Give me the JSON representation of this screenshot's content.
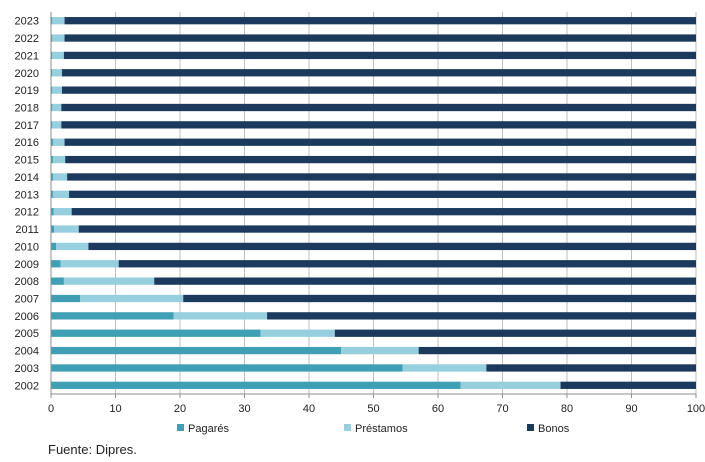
{
  "chart_data": {
    "type": "bar",
    "orientation": "horizontal",
    "stacked": true,
    "categories": [
      "2002",
      "2003",
      "2004",
      "2005",
      "2006",
      "2007",
      "2008",
      "2009",
      "2010",
      "2011",
      "2012",
      "2013",
      "2014",
      "2015",
      "2016",
      "2017",
      "2018",
      "2019",
      "2020",
      "2021",
      "2022",
      "2023"
    ],
    "series": [
      {
        "name": "Pagarés",
        "color": "#3f9fb5",
        "values": [
          63.5,
          54.5,
          45,
          32.5,
          19,
          4.5,
          2,
          1.5,
          0.8,
          0.5,
          0.4,
          0.3,
          0.3,
          0.3,
          0.3,
          0.2,
          0.2,
          0.2,
          0.2,
          0.2,
          0.2,
          0.2
        ]
      },
      {
        "name": "Préstamos",
        "color": "#96cfdd",
        "values": [
          15.5,
          13,
          12,
          11.5,
          14.5,
          16,
          14,
          9,
          5,
          3.8,
          2.8,
          2.5,
          2.2,
          1.9,
          1.8,
          1.4,
          1.4,
          1.5,
          1.5,
          1.8,
          1.9,
          1.9
        ]
      },
      {
        "name": "Bonos",
        "color": "#1c3a5e",
        "values": [
          21,
          32.5,
          43,
          56,
          66.5,
          79.5,
          84,
          89.5,
          94.2,
          95.7,
          96.8,
          97.2,
          97.5,
          97.8,
          97.9,
          98.4,
          98.4,
          98.3,
          98.3,
          98,
          97.9,
          97.9
        ]
      }
    ],
    "xlim": [
      0,
      100
    ],
    "xticks": [
      0,
      10,
      20,
      30,
      40,
      50,
      60,
      70,
      80,
      90,
      100
    ],
    "grid": true,
    "legend_position": "bottom",
    "title": "",
    "xlabel": "",
    "ylabel": ""
  },
  "source_note": "Fuente: Dipres."
}
